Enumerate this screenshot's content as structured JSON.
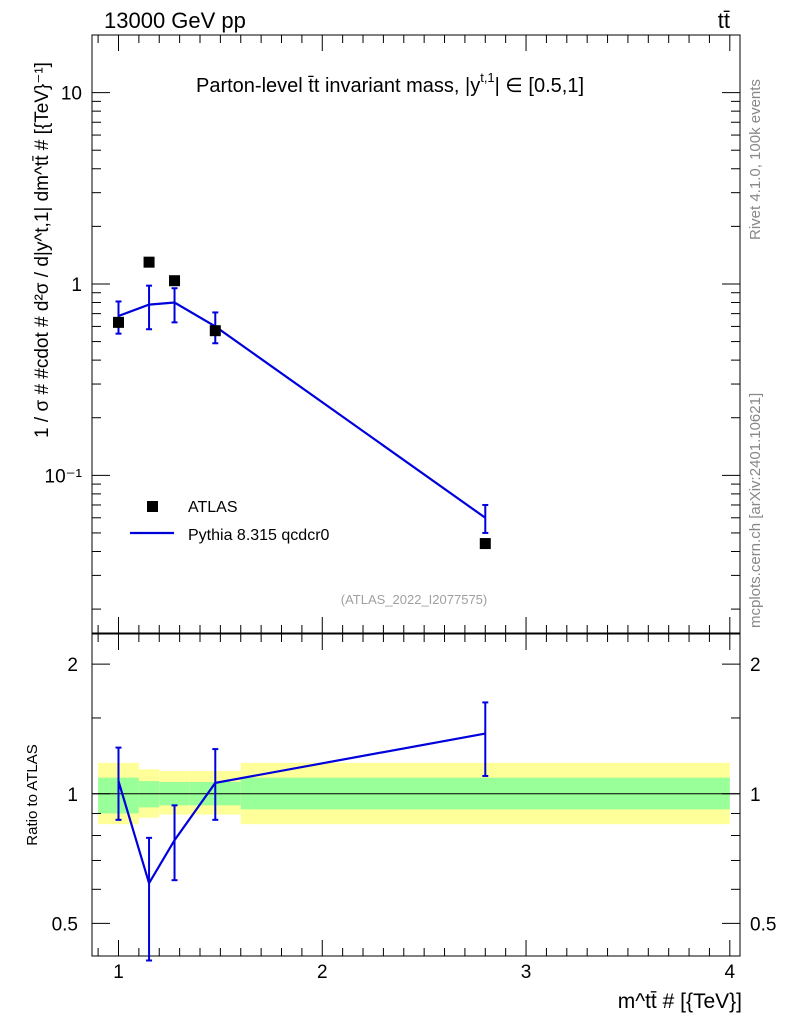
{
  "header": {
    "energy_label": "13000 GeV pp",
    "process_label": "tt̄"
  },
  "main_plot": {
    "title": "Parton-level t̄t invariant mass, |y",
    "title_superscript": "t,1",
    "title_suffix": "| ∈ [0.5,1]",
    "ylabel": "1 / σ # #cdot # d²σ / d|y^t,1| dm^tt̄ # [{TeV}⁻¹]",
    "y_tick_labels": [
      "10",
      "1",
      "10⁻¹"
    ],
    "legend": {
      "data_label": "ATLAS",
      "mc_label": "Pythia 8.315 qcdcr0"
    },
    "watermark": "(ATLAS_2022_I2077575)"
  },
  "ratio_plot": {
    "ylabel": "Ratio to ATLAS",
    "y_tick_labels": [
      "2",
      "1",
      "0.5"
    ]
  },
  "xaxis": {
    "label": "m^tt̄ # [{TeV}]",
    "tick_labels": [
      "1",
      "2",
      "3",
      "4"
    ]
  },
  "side_labels": {
    "rivet": "Rivet 4.1.0,  100k events",
    "mcplots": "mcplots.cern.ch [arXiv:2401.10621]"
  },
  "colors": {
    "mc_line": "#0000dd",
    "band_inner": "#99ff99",
    "band_outer": "#ffff99",
    "data_marker": "#000000"
  },
  "chart_data": {
    "type": "line",
    "xlim": [
      0.87,
      4.05
    ],
    "main_ylim": [
      0.015,
      20
    ],
    "ratio_ylim": [
      0.42,
      2.35
    ],
    "bins": [
      [
        0.9,
        1.1
      ],
      [
        1.1,
        1.2
      ],
      [
        1.2,
        1.35
      ],
      [
        1.35,
        1.6
      ],
      [
        1.6,
        4.0
      ]
    ],
    "x": [
      1.0,
      1.15,
      1.275,
      1.475,
      2.8
    ],
    "data_values": [
      0.63,
      1.3,
      1.04,
      0.57,
      0.044
    ],
    "mc_values": [
      0.68,
      0.78,
      0.8,
      0.6,
      0.06
    ],
    "mc_err_low": [
      0.55,
      0.58,
      0.63,
      0.49,
      0.05
    ],
    "mc_err_high": [
      0.81,
      0.98,
      0.95,
      0.71,
      0.07
    ],
    "ratio_values": [
      1.07,
      0.62,
      0.78,
      1.06,
      1.38
    ],
    "ratio_err_low": [
      0.87,
      0.41,
      0.63,
      0.87,
      1.1
    ],
    "ratio_err_high": [
      1.28,
      0.79,
      0.94,
      1.27,
      1.63
    ],
    "band_inner": [
      [
        0.9,
        1.09
      ],
      [
        0.93,
        1.07
      ],
      [
        0.94,
        1.065
      ],
      [
        0.94,
        1.065
      ],
      [
        0.92,
        1.09
      ]
    ],
    "band_outer": [
      [
        0.85,
        1.18
      ],
      [
        0.88,
        1.14
      ],
      [
        0.895,
        1.13
      ],
      [
        0.895,
        1.13
      ],
      [
        0.85,
        1.18
      ]
    ],
    "series": [
      {
        "name": "ATLAS",
        "kind": "data-markers"
      },
      {
        "name": "Pythia 8.315 qcdcr0",
        "kind": "line-with-errors"
      }
    ]
  }
}
